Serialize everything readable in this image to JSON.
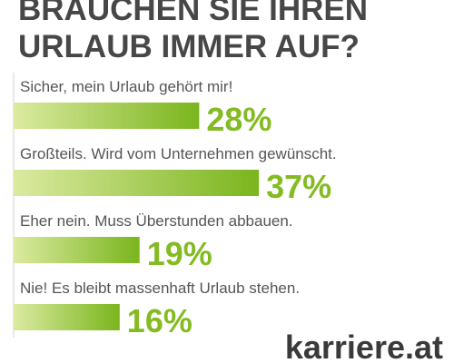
{
  "chart_data": {
    "type": "bar",
    "title": [
      "BRAUCHEN SIE IHREN",
      "URLAUB IMMER AUF?"
    ],
    "categories": [
      "Sicher, mein Urlaub gehört mir!",
      "Großteils. Wird vom Unternehmen gewünscht.",
      "Eher nein. Muss Überstunden abbauen.",
      "Nie! Es bleibt massenhaft Urlaub stehen."
    ],
    "values": [
      28,
      37,
      19,
      16
    ],
    "value_labels": [
      "28%",
      "37%",
      "19%",
      "16%"
    ],
    "color": "#7ab51d"
  },
  "logo": "karriere.at"
}
